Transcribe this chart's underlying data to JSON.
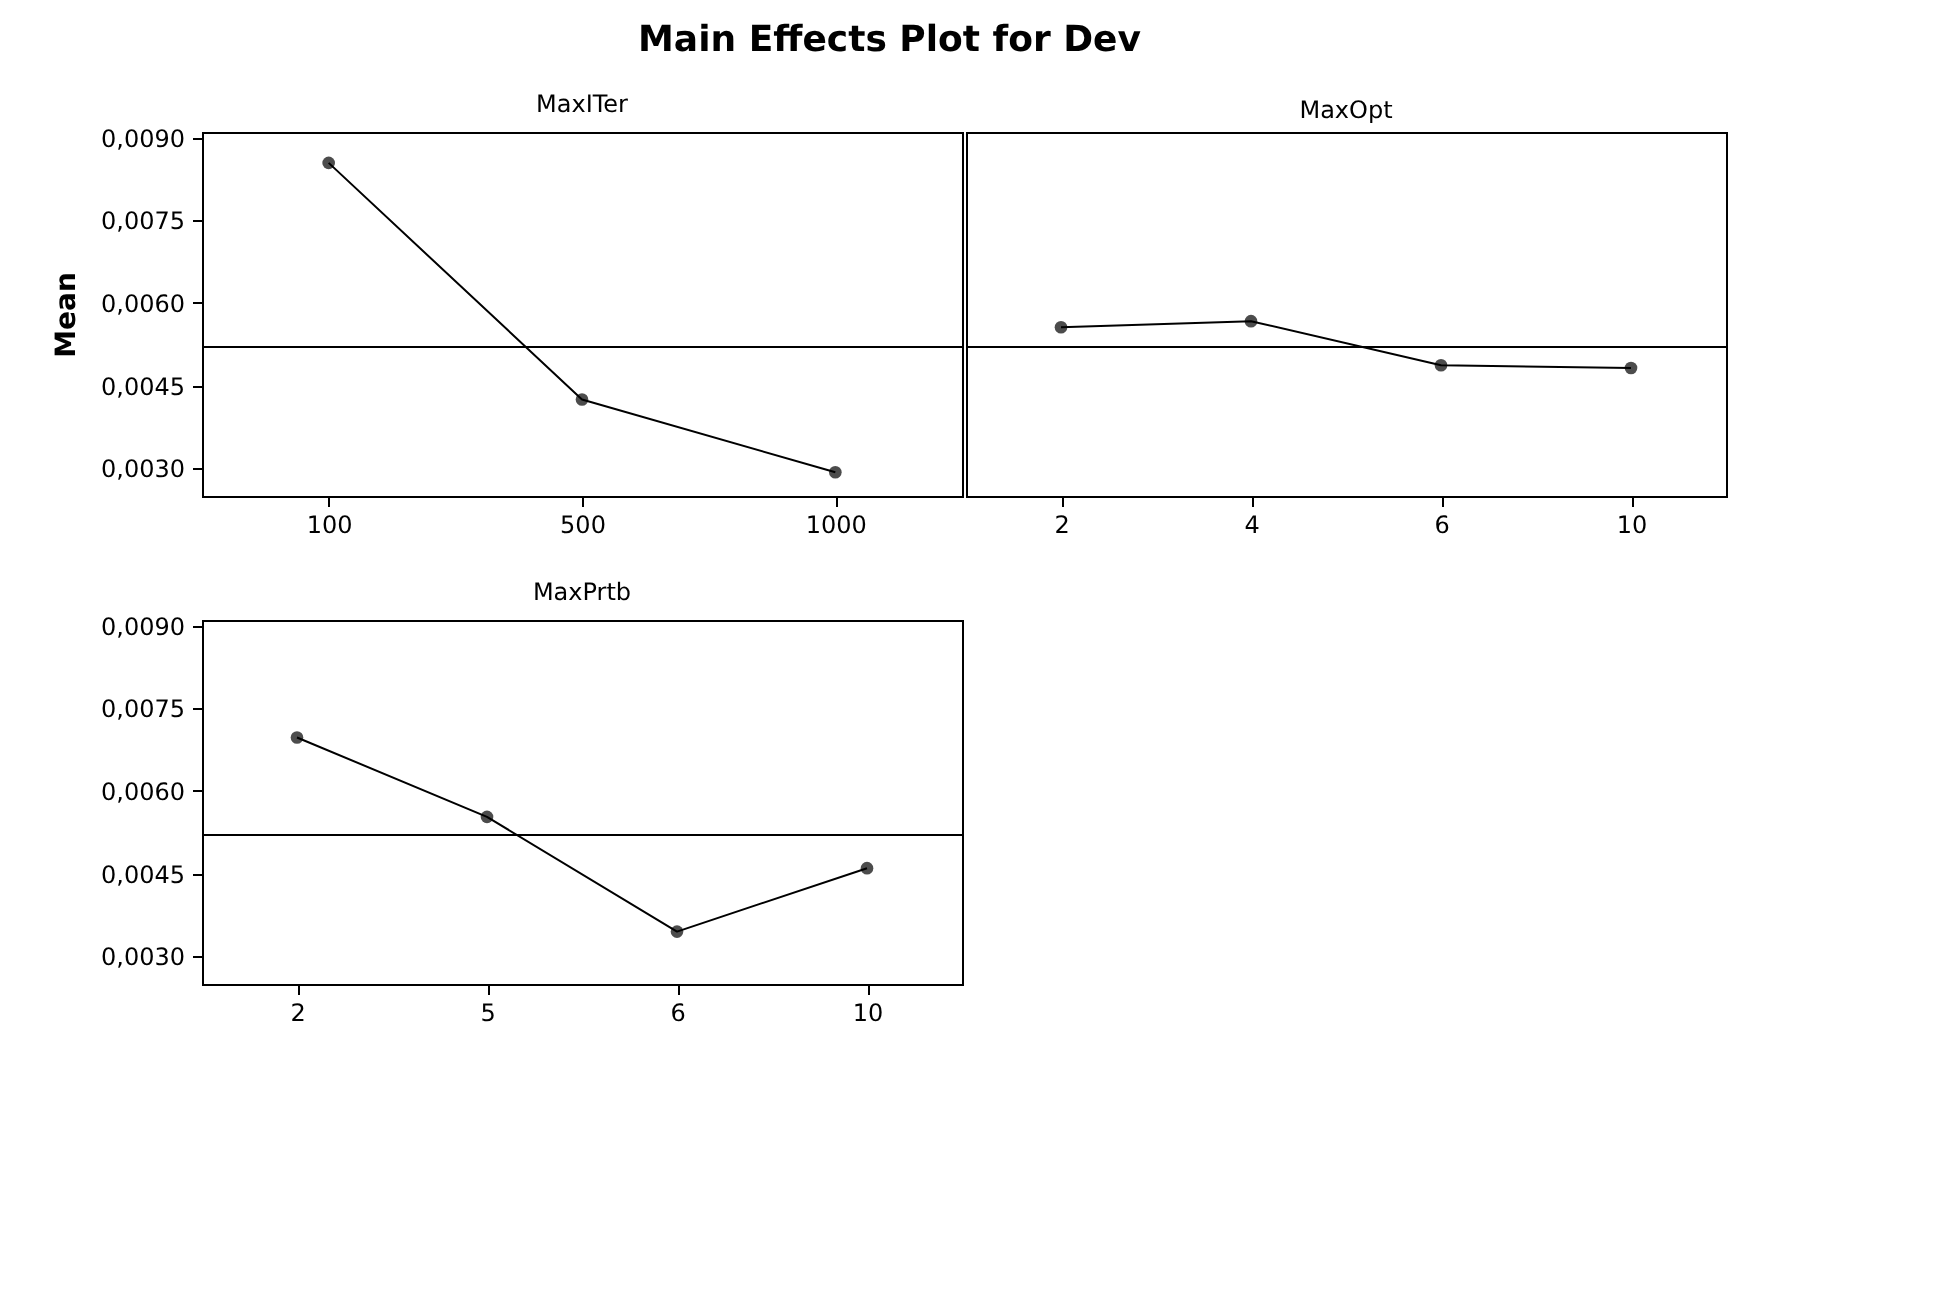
{
  "chart_data": [
    {
      "type": "line",
      "title": "Main Effects Plot for Dev",
      "xlabel": "MaxITer",
      "ylabel": "Mean",
      "categories": [
        "100",
        "500",
        "1000"
      ],
      "series": [
        {
          "color": "#000000",
          "values": [
            0.00854,
            0.00425,
            0.00293
          ]
        }
      ],
      "ylim": [
        0.0025,
        0.0091
      ],
      "yticks": [
        {
          "value": 0.003,
          "label": "0,0030"
        },
        {
          "value": 0.0045,
          "label": "0,0045"
        },
        {
          "value": 0.006,
          "label": "0,0060"
        },
        {
          "value": 0.0075,
          "label": "0,0075"
        },
        {
          "value": 0.009,
          "label": "0,0090"
        }
      ],
      "ref_lines": [
        {
          "axis": "y",
          "value": 0.0052,
          "color": "#000000"
        }
      ],
      "marker": "circle",
      "grid": false,
      "legend": false
    },
    {
      "type": "line",
      "xlabel": "MaxOpt",
      "categories": [
        "2",
        "4",
        "6",
        "10"
      ],
      "series": [
        {
          "color": "#000000",
          "values": [
            0.00556,
            0.00567,
            0.00487,
            0.00482
          ]
        }
      ],
      "ylim": [
        0.0025,
        0.0091
      ],
      "tick_labels": "x",
      "ref_lines": [
        {
          "axis": "y",
          "value": 0.0052,
          "color": "#000000"
        }
      ],
      "marker": "circle",
      "grid": false,
      "legend": false
    },
    {
      "type": "line",
      "xlabel": "MaxPrtb",
      "categories": [
        "2",
        "5",
        "6",
        "10"
      ],
      "series": [
        {
          "color": "#000000",
          "values": [
            0.00697,
            0.00553,
            0.00345,
            0.0046
          ]
        }
      ],
      "ylim": [
        0.0025,
        0.0091
      ],
      "yticks": [
        {
          "value": 0.003,
          "label": "0,0030"
        },
        {
          "value": 0.0045,
          "label": "0,0045"
        },
        {
          "value": 0.006,
          "label": "0,0060"
        },
        {
          "value": 0.0075,
          "label": "0,0075"
        },
        {
          "value": 0.009,
          "label": "0,0090"
        }
      ],
      "ref_lines": [
        {
          "axis": "y",
          "value": 0.0052,
          "color": "#000000"
        }
      ],
      "marker": "circle",
      "grid": false,
      "legend": false
    }
  ]
}
